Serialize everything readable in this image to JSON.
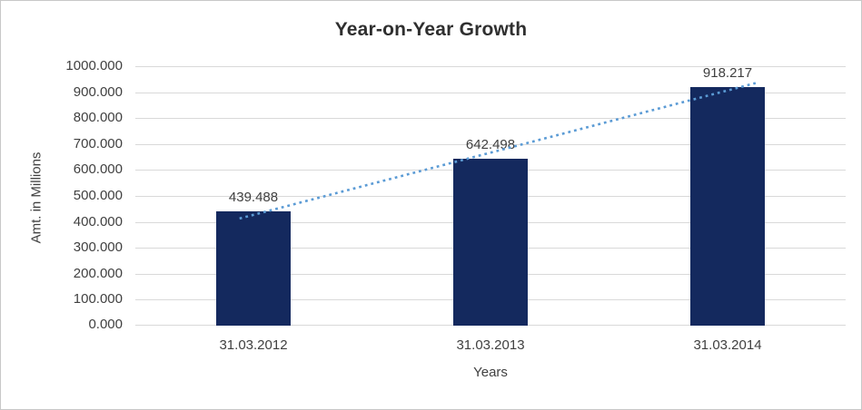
{
  "chart_data": {
    "type": "bar",
    "title": "Year-on-Year Growth",
    "categories": [
      "31.03.2012",
      "31.03.2013",
      "31.03.2014"
    ],
    "values": [
      439.488,
      642.498,
      918.217
    ],
    "value_labels": [
      "439.488",
      "642.498",
      "918.217"
    ],
    "xlabel": "Years",
    "ylabel": "Amt. in Millions",
    "ylim": [
      0,
      1000
    ],
    "ytick_step": 100,
    "ytick_labels": [
      "0.000",
      "100.000",
      "200.000",
      "300.000",
      "400.000",
      "500.000",
      "600.000",
      "700.000",
      "800.000",
      "900.000",
      "1000.000"
    ],
    "grid": true,
    "legend_position": "none",
    "trendline": {
      "type": "linear",
      "style": "dotted"
    },
    "colors": {
      "bar": "#14295E",
      "trendline": "#5B9BD5",
      "gridline": "#D9D9D9",
      "title_text": "#2F2F2F",
      "label_text": "#404040",
      "frame_border": "#C8C8C8",
      "background": "#FFFFFF"
    }
  }
}
